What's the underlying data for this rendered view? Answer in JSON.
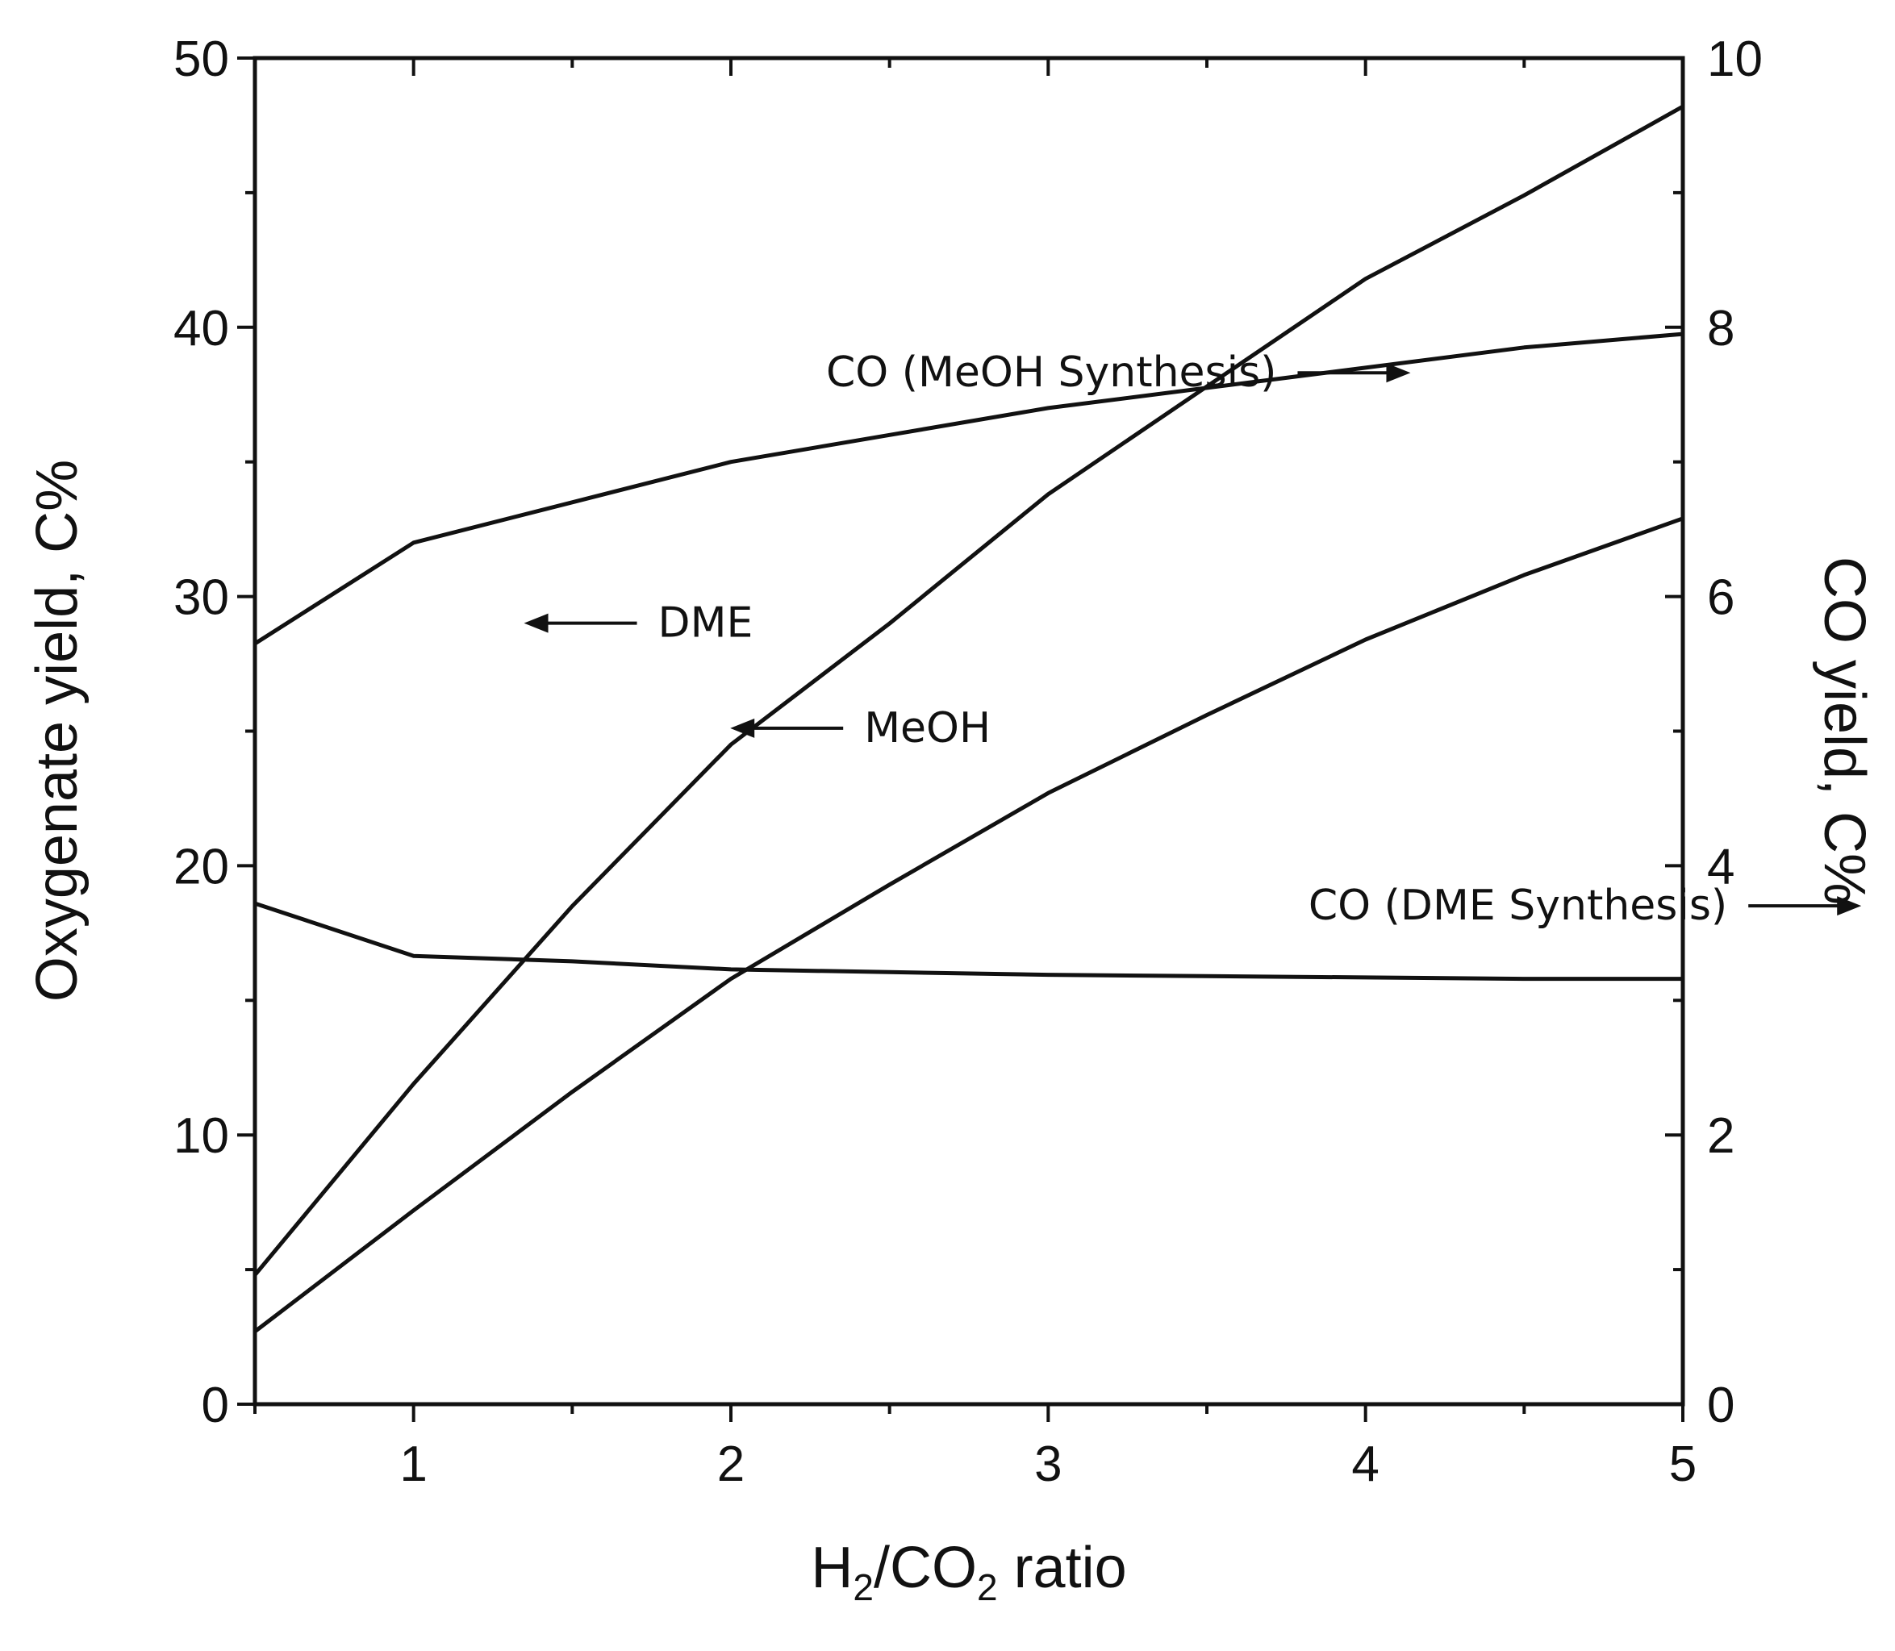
{
  "chart_data": {
    "type": "line",
    "xlabel": {
      "main": "H",
      "sub1": "2",
      "mid": "/CO",
      "sub2": "2",
      "tail": " ratio"
    },
    "ylabel": "Oxygenate yield, C%",
    "y2label": "CO yield, C%",
    "xlim": [
      0.5,
      5
    ],
    "ylim": [
      0,
      50
    ],
    "y2lim": [
      0,
      10
    ],
    "x_ticks": [
      1,
      2,
      3,
      4,
      5
    ],
    "y_ticks": [
      0,
      10,
      20,
      30,
      40,
      50
    ],
    "y2_ticks": [
      0,
      2,
      4,
      6,
      8,
      10
    ],
    "grid": false,
    "series": [
      {
        "axis": "left",
        "x": [
          0.5,
          1,
          1.5,
          2,
          2.5,
          3,
          3.5,
          4,
          4.5,
          5
        ],
        "values": [
          4.8,
          11.9,
          18.5,
          24.5,
          29.0,
          33.8,
          37.8,
          41.8,
          44.9,
          48.2
        ]
      },
      {
        "axis": "left",
        "x": [
          0.5,
          1,
          1.5,
          2,
          2.5,
          3,
          3.5,
          4,
          4.5,
          5
        ],
        "values": [
          2.7,
          7.2,
          11.6,
          15.8,
          19.3,
          22.7,
          25.6,
          28.4,
          30.8,
          32.9
        ]
      },
      {
        "axis": "right",
        "x": [
          0.5,
          1,
          1.5,
          2,
          2.5,
          3,
          3.5,
          4,
          4.5,
          5
        ],
        "values": [
          5.65,
          6.4,
          6.7,
          7.0,
          7.2,
          7.4,
          7.55,
          7.7,
          7.85,
          7.95
        ]
      },
      {
        "axis": "right",
        "x": [
          0.5,
          1,
          1.5,
          2,
          2.5,
          3,
          3.5,
          4,
          4.5,
          5
        ],
        "values": [
          3.72,
          3.33,
          3.29,
          3.23,
          3.21,
          3.19,
          3.18,
          3.17,
          3.16,
          3.16
        ]
      }
    ],
    "annotations": [
      {
        "text": "CO (MeOH Synthesis)",
        "arrow": "right",
        "x": 2.3,
        "y": 37.8
      },
      {
        "text": "DME",
        "arrow": "left",
        "x": 1.77,
        "y": 28.5
      },
      {
        "text": "MeOH",
        "arrow": "left",
        "x": 2.42,
        "y": 24.6
      },
      {
        "text": "CO (DME Synthesis)",
        "arrow": "right",
        "x": 3.82,
        "y": 18.0
      }
    ]
  }
}
